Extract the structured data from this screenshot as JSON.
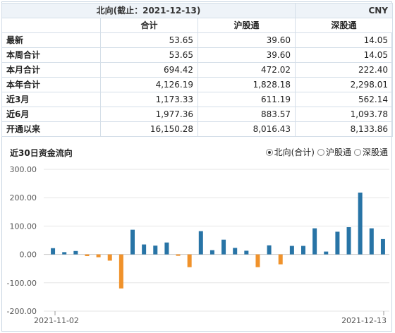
{
  "header": {
    "title": "北向(截止：2021-12-13)",
    "currency": "CNY"
  },
  "table": {
    "columns": [
      "合计",
      "沪股通",
      "深股通"
    ],
    "rows": [
      {
        "label": "最新",
        "values": [
          "53.65",
          "39.60",
          "14.05"
        ]
      },
      {
        "label": "本周合计",
        "values": [
          "53.65",
          "39.60",
          "14.05"
        ]
      },
      {
        "label": "本月合计",
        "values": [
          "694.42",
          "472.02",
          "222.40"
        ]
      },
      {
        "label": "本年合计",
        "values": [
          "4,126.19",
          "1,828.18",
          "2,298.01"
        ]
      },
      {
        "label": "近3月",
        "values": [
          "1,173.33",
          "611.19",
          "562.14"
        ]
      },
      {
        "label": "近6月",
        "values": [
          "1,977.36",
          "883.57",
          "1,093.78"
        ]
      },
      {
        "label": "开通以来",
        "values": [
          "16,150.28",
          "8,016.43",
          "8,133.86"
        ]
      }
    ]
  },
  "chart_section": {
    "title": "近30日资金流向",
    "options": [
      {
        "label": "北向(合计)",
        "selected": true
      },
      {
        "label": "沪股通",
        "selected": false
      },
      {
        "label": "深股通",
        "selected": false
      }
    ]
  },
  "chart_data": {
    "type": "bar",
    "title": "近30日资金流向",
    "ylim": [
      -200,
      300
    ],
    "yticks": [
      "300.00",
      "200.00",
      "100.00",
      "0.00",
      "-100.00",
      "-200.00"
    ],
    "ytick_values": [
      300,
      200,
      100,
      0,
      -100,
      -200
    ],
    "x_start_label": "2021-11-02",
    "x_end_label": "2021-12-13",
    "positive_color": "#2874a6",
    "negative_color": "#f0922b",
    "values": [
      22,
      8,
      12,
      -6,
      -10,
      -22,
      -120,
      87,
      35,
      31,
      42,
      -5,
      -45,
      82,
      15,
      52,
      23,
      13,
      -45,
      32,
      -35,
      30,
      30,
      92,
      10,
      80,
      96,
      218,
      92,
      54
    ]
  }
}
